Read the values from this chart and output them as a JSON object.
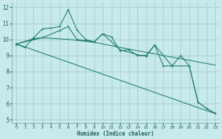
{
  "bg_color": "#c8eaea",
  "grid_color": "#a8d0d0",
  "line_color": "#1a7a6a",
  "xlabel": "Humidex (Indice chaleur)",
  "ylim": [
    4.8,
    12.3
  ],
  "xlim": [
    -0.5,
    23.5
  ],
  "yticks": [
    5,
    6,
    7,
    8,
    9,
    10,
    11,
    12
  ],
  "xticks": [
    0,
    1,
    2,
    3,
    4,
    5,
    6,
    7,
    8,
    9,
    10,
    11,
    12,
    13,
    14,
    15,
    16,
    17,
    18,
    19,
    20,
    21,
    22,
    23
  ],
  "line1_x": [
    0,
    1,
    2,
    3,
    4,
    5,
    6,
    7,
    8,
    9,
    10,
    11,
    12,
    13,
    14,
    15,
    16,
    17,
    18,
    19,
    20,
    21,
    22,
    23
  ],
  "line1_y": [
    9.7,
    9.5,
    10.1,
    10.65,
    10.7,
    10.8,
    11.85,
    10.6,
    10.0,
    9.85,
    10.35,
    10.15,
    9.3,
    9.35,
    9.0,
    9.0,
    9.65,
    8.35,
    8.35,
    9.0,
    8.35,
    6.1,
    5.7,
    5.4
  ],
  "line2_x": [
    0,
    2,
    3,
    5,
    6,
    7,
    9,
    10,
    12,
    14,
    15,
    16,
    18,
    20,
    21,
    22,
    23
  ],
  "line2_y": [
    9.7,
    10.05,
    10.1,
    10.55,
    10.8,
    10.0,
    9.85,
    10.35,
    9.35,
    9.05,
    8.95,
    9.65,
    8.35,
    8.35,
    6.1,
    5.7,
    5.4
  ],
  "line3_x": [
    0,
    23
  ],
  "line3_y": [
    9.72,
    5.38
  ],
  "line4_x": [
    0,
    3,
    6,
    9,
    12,
    15,
    18,
    21,
    23
  ],
  "line4_y": [
    9.72,
    10.1,
    10.0,
    9.82,
    9.5,
    9.2,
    8.9,
    8.6,
    8.4
  ]
}
